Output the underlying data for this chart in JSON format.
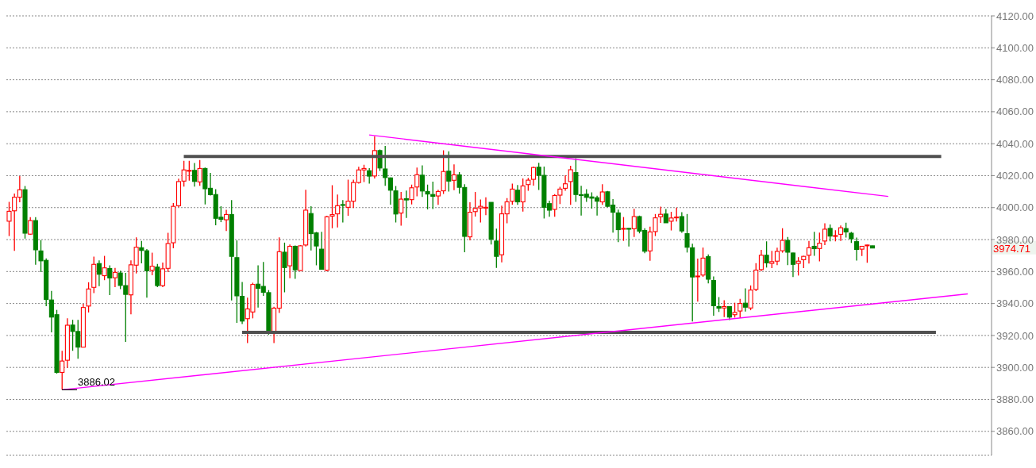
{
  "chart_data": {
    "type": "candlestick",
    "categories": [
      null,
      null,
      null,
      null,
      null,
      null,
      null,
      null,
      null,
      null,
      null,
      null,
      null,
      null,
      null,
      null,
      null,
      null,
      null,
      null,
      null,
      null,
      null,
      null,
      null,
      null,
      null,
      null,
      null,
      null,
      null,
      null,
      null,
      null,
      null,
      null,
      null,
      null,
      null,
      null,
      null,
      null,
      null,
      null,
      null,
      null,
      null,
      null,
      null,
      null,
      null,
      null,
      null,
      null,
      null,
      null,
      null,
      null,
      null,
      null,
      null,
      null,
      null,
      null,
      null,
      null,
      null,
      null,
      null,
      null,
      null,
      null,
      null,
      null,
      null,
      null,
      null,
      null,
      null,
      null,
      null,
      null,
      null,
      null,
      null,
      null,
      null,
      null,
      null,
      null,
      null,
      null,
      null,
      null,
      null,
      null,
      null,
      null,
      null,
      null,
      null,
      null,
      null,
      null,
      null,
      null,
      null,
      null,
      null,
      null,
      null,
      null,
      null,
      null,
      null,
      null,
      null,
      null,
      null,
      null,
      null,
      null,
      null,
      null,
      null,
      null,
      null,
      null,
      null,
      null,
      null,
      null,
      null,
      null,
      null,
      null,
      null,
      null,
      null,
      null,
      null,
      null,
      null,
      null,
      null,
      null,
      null,
      null,
      null,
      null,
      null,
      null,
      null,
      null,
      null,
      null,
      null,
      null,
      null,
      null,
      null,
      null,
      null,
      null,
      null,
      null,
      null,
      null,
      null,
      null,
      null,
      null,
      null,
      null,
      null,
      null,
      null,
      null,
      null,
      null,
      null,
      null,
      null,
      null,
      null,
      null
    ],
    "ohlc": [
      [
        3991.5,
        4003.6,
        3982.2,
        3997.7
      ],
      [
        3998.0,
        4008.8,
        3972.9,
        4006.5
      ],
      [
        4006.5,
        4019.7,
        4003.4,
        4011.2
      ],
      [
        4011.2,
        4013.5,
        3980.6,
        3984.0
      ],
      [
        3983.4,
        3994.1,
        3983.0,
        3991.9
      ],
      [
        3991.9,
        3994.1,
        3964.3,
        3973.6
      ],
      [
        3972.9,
        3979.7,
        3959.7,
        3966.7
      ],
      [
        3967.0,
        3968.2,
        3938.3,
        3942.5
      ],
      [
        3942.2,
        3947.9,
        3922.0,
        3931.5
      ],
      [
        3933.0,
        3936.0,
        3896.1,
        3896.9
      ],
      [
        3896.9,
        3910.4,
        3886.02,
        3904.0
      ],
      [
        3904.5,
        3930.7,
        3899.7,
        3926.4
      ],
      [
        3926.5,
        3929.8,
        3910.4,
        3922.5
      ],
      [
        3922.5,
        3929.8,
        3905.4,
        3912.7
      ],
      [
        3912.7,
        3939.8,
        3912.7,
        3937.5
      ],
      [
        3938.4,
        3953.3,
        3934.4,
        3949.1
      ],
      [
        3950.1,
        3969.3,
        3946.5,
        3964.5
      ],
      [
        3965.0,
        3967.0,
        3950.9,
        3958.3
      ],
      [
        3957.4,
        3969.8,
        3954.6,
        3962.3
      ],
      [
        3961.9,
        3963.9,
        3945.3,
        3956.0
      ],
      [
        3956.1,
        3962.3,
        3950.2,
        3959.5
      ],
      [
        3959.1,
        3960.5,
        3949.0,
        3951.3
      ],
      [
        3951.2,
        3959.2,
        3916.0,
        3945.7
      ],
      [
        3945.4,
        3967.0,
        3933.2,
        3964.2
      ],
      [
        3964.0,
        3981.4,
        3958.8,
        3975.2
      ],
      [
        3974.9,
        3979.1,
        3965.1,
        3973.2
      ],
      [
        3973.0,
        3974.0,
        3943.7,
        3960.5
      ],
      [
        3960.8,
        3971.8,
        3957.7,
        3963.3
      ],
      [
        3962.8,
        3964.7,
        3950.2,
        3951.2
      ],
      [
        3951.2,
        3965.6,
        3950.2,
        3961.7
      ],
      [
        3962.0,
        3984.2,
        3959.7,
        3977.5
      ],
      [
        3978.0,
        4002.9,
        3974.6,
        4000.8
      ],
      [
        4001.2,
        4018.1,
        4000.3,
        4016.3
      ],
      [
        4016.6,
        4029.3,
        4013.2,
        4023.6
      ],
      [
        4023.0,
        4029.3,
        4016.9,
        4023.3
      ],
      [
        4023.3,
        4027.9,
        4013.2,
        4016.4
      ],
      [
        4016.1,
        4029.8,
        4013.6,
        4024.5
      ],
      [
        4024.5,
        4025.1,
        4002.0,
        4011.8
      ],
      [
        4012.1,
        4021.7,
        4007.6,
        4008.1
      ],
      [
        4008.2,
        4011.6,
        3989.0,
        3993.3
      ],
      [
        3994.0,
        4000.9,
        3990.9,
        3992.7
      ],
      [
        3992.4,
        3998.6,
        3985.3,
        3995.7
      ],
      [
        3995.7,
        4004.7,
        3941.9,
        3969.5
      ],
      [
        3968.7,
        3979.5,
        3927.9,
        3944.8
      ],
      [
        3944.5,
        3953.5,
        3927.1,
        3929.0
      ],
      [
        3930.5,
        3943.7,
        3915.3,
        3936.6
      ],
      [
        3934.7,
        3953.0,
        3930.7,
        3951.9
      ],
      [
        3952.1,
        3963.9,
        3937.5,
        3949.5
      ],
      [
        3950.7,
        3966.0,
        3944.8,
        3947.0
      ],
      [
        3946.8,
        3948.4,
        3920.5,
        3921.7
      ],
      [
        3921.7,
        3937.9,
        3915.3,
        3937.1
      ],
      [
        3937.1,
        3981.4,
        3934.1,
        3972.4
      ],
      [
        3972.1,
        3978.1,
        3947.0,
        3962.5
      ],
      [
        3963.6,
        3976.9,
        3955.8,
        3975.8
      ],
      [
        3975.8,
        3976.3,
        3955.5,
        3961.1
      ],
      [
        3960.6,
        3976.5,
        3960.5,
        3976.1
      ],
      [
        3976.6,
        4011.2,
        3975.7,
        3998.4
      ],
      [
        3996.3,
        4000.9,
        3973.2,
        3983.7
      ],
      [
        3984.2,
        3984.8,
        3963.9,
        3976.0
      ],
      [
        3974.0,
        3984.8,
        3961.1,
        3961.4
      ],
      [
        3960.8,
        3994.9,
        3960.2,
        3994.3
      ],
      [
        3994.7,
        4014.0,
        3987.1,
        3995.6
      ],
      [
        3996.1,
        4008.2,
        3987.6,
        4001.2
      ],
      [
        4001.9,
        4004.7,
        3990.7,
        4001.6
      ],
      [
        4000.2,
        4017.5,
        3994.9,
        4004.0
      ],
      [
        4004.0,
        4017.5,
        3999.7,
        4015.7
      ],
      [
        4015.7,
        4025.6,
        4015.0,
        4023.6
      ],
      [
        4023.6,
        4026.8,
        4016.0,
        4024.5
      ],
      [
        4023.1,
        4024.7,
        4015.0,
        4019.7
      ],
      [
        4019.8,
        4044.7,
        4018.3,
        4035.7
      ],
      [
        4035.7,
        4036.3,
        4022.9,
        4024.8
      ],
      [
        4024.2,
        4038.6,
        4013.6,
        4018.8
      ],
      [
        4018.6,
        4018.8,
        4001.9,
        4010.9
      ],
      [
        4010.5,
        4013.5,
        3990.7,
        3996.0
      ],
      [
        3996.6,
        4009.8,
        3988.7,
        4005.3
      ],
      [
        4005.6,
        4010.7,
        3993.6,
        4004.8
      ],
      [
        4005.0,
        4014.4,
        4002.0,
        4012.4
      ],
      [
        4012.9,
        4025.1,
        4007.1,
        4020.6
      ],
      [
        4020.3,
        4026.4,
        4006.7,
        4010.4
      ],
      [
        4010.1,
        4014.4,
        3998.9,
        4008.5
      ],
      [
        4008.2,
        4016.3,
        3999.1,
        4007.1
      ],
      [
        4007.3,
        4011.2,
        4001.7,
        4010.1
      ],
      [
        4010.5,
        4035.8,
        4008.5,
        4022.6
      ],
      [
        4022.8,
        4035.2,
        4010.1,
        4016.6
      ],
      [
        4017.1,
        4027.0,
        4010.9,
        4020.5
      ],
      [
        4020.5,
        4022.2,
        4008.8,
        4012.7
      ],
      [
        4012.6,
        4014.7,
        3972.1,
        3982.0
      ],
      [
        3981.7,
        4003.3,
        3979.5,
        3997.1
      ],
      [
        3997.5,
        4009.8,
        3994.4,
        3999.5
      ],
      [
        3999.8,
        4005.1,
        3990.7,
        4000.8
      ],
      [
        3999.9,
        4006.5,
        3995.3,
        4000.2
      ],
      [
        4003.3,
        4003.4,
        3976.9,
        3980.2
      ],
      [
        3979.1,
        3986.8,
        3962.3,
        3969.5
      ],
      [
        3970.5,
        4001.2,
        3965.7,
        3996.1
      ],
      [
        3996.1,
        4005.9,
        3990.2,
        4003.6
      ],
      [
        4004.0,
        4015.0,
        4001.8,
        4011.6
      ],
      [
        4010.9,
        4014.1,
        4001.7,
        4003.6
      ],
      [
        4003.6,
        4018.3,
        3997.5,
        4013.6
      ],
      [
        4014.4,
        4018.6,
        4010.5,
        4017.2
      ],
      [
        4017.7,
        4025.7,
        4013.8,
        4025.1
      ],
      [
        4025.3,
        4028.1,
        4011.0,
        4020.2
      ],
      [
        4020.2,
        4025.7,
        3993.2,
        4000.2
      ],
      [
        4002.5,
        4004.3,
        3994.3,
        3998.4
      ],
      [
        3998.9,
        4008.4,
        3994.3,
        4007.6
      ],
      [
        4007.8,
        4013.0,
        4002.2,
        4011.6
      ],
      [
        4012.1,
        4020.2,
        4010.5,
        4014.9
      ],
      [
        4016.3,
        4026.2,
        4001.7,
        4023.7
      ],
      [
        4021.9,
        4030.9,
        4003.6,
        4008.2
      ],
      [
        4008.1,
        4013.6,
        3995.0,
        4007.8
      ],
      [
        4008.4,
        4011.6,
        4003.6,
        4006.4
      ],
      [
        4006.7,
        4009.5,
        3999.4,
        4005.9
      ],
      [
        4006.2,
        4007.4,
        3995.0,
        4004.0
      ],
      [
        4003.6,
        4014.6,
        4001.7,
        4009.8
      ],
      [
        4009.9,
        4010.4,
        4000.2,
        4000.8
      ],
      [
        4001.6,
        4005.3,
        3984.3,
        3997.1
      ],
      [
        3996.7,
        3998.8,
        3978.4,
        3986.2
      ],
      [
        3986.5,
        3994.1,
        3979.2,
        3987.0
      ],
      [
        3987.0,
        3987.2,
        3975.7,
        3986.5
      ],
      [
        3986.8,
        3999.2,
        3981.6,
        3994.4
      ],
      [
        3994.4,
        3995.0,
        3983.9,
        3985.3
      ],
      [
        3985.7,
        3987.1,
        3971.5,
        3972.7
      ],
      [
        3972.9,
        3988.1,
        3966.8,
        3984.8
      ],
      [
        3985.0,
        3996.0,
        3982.2,
        3993.6
      ],
      [
        3994.3,
        4000.6,
        3990.4,
        3995.8
      ],
      [
        3996.0,
        3999.1,
        3990.4,
        3990.5
      ],
      [
        3991.5,
        3997.4,
        3985.7,
        3993.5
      ],
      [
        3993.8,
        4000.0,
        3991.3,
        3994.1
      ],
      [
        3994.4,
        3997.2,
        3984.2,
        3985.4
      ],
      [
        3983.7,
        3996.0,
        3971.9,
        3975.2
      ],
      [
        3974.9,
        3977.4,
        3928.8,
        3956.6
      ],
      [
        3956.7,
        3968.1,
        3941.2,
        3957.2
      ],
      [
        3957.8,
        3975.0,
        3956.7,
        3968.4
      ],
      [
        3969.3,
        3970.7,
        3952.6,
        3955.2
      ],
      [
        3954.4,
        3956.9,
        3932.4,
        3938.6
      ],
      [
        3938.1,
        3944.0,
        3934.7,
        3937.1
      ],
      [
        3937.2,
        3942.0,
        3931.5,
        3938.1
      ],
      [
        3938.1,
        3938.3,
        3929.6,
        3931.5
      ],
      [
        3933.0,
        3940.5,
        3931.2,
        3934.4
      ],
      [
        3935.3,
        3942.9,
        3930.9,
        3940.0
      ],
      [
        3940.2,
        3949.5,
        3935.0,
        3937.7
      ],
      [
        3937.2,
        3951.3,
        3935.8,
        3948.4
      ],
      [
        3948.8,
        3965.3,
        3947.8,
        3960.9
      ],
      [
        3961.2,
        3973.6,
        3960.3,
        3970.2
      ],
      [
        3970.2,
        3978.9,
        3962.5,
        3965.4
      ],
      [
        3965.1,
        3973.0,
        3962.2,
        3966.2
      ],
      [
        3966.5,
        3974.9,
        3964.0,
        3972.6
      ],
      [
        3973.0,
        3987.1,
        3971.8,
        3979.5
      ],
      [
        3979.5,
        3981.6,
        3964.0,
        3972.1
      ],
      [
        3971.6,
        3971.8,
        3956.6,
        3964.5
      ],
      [
        3965.1,
        3969.0,
        3957.5,
        3966.5
      ],
      [
        3967.4,
        3969.9,
        3962.2,
        3969.5
      ],
      [
        3970.2,
        3979.2,
        3965.0,
        3974.9
      ],
      [
        3975.8,
        3984.8,
        3969.9,
        3974.3
      ],
      [
        3974.4,
        3984.3,
        3966.4,
        3977.7
      ],
      [
        3979.1,
        3990.2,
        3976.6,
        3986.5
      ],
      [
        3987.0,
        3989.5,
        3978.9,
        3982.2
      ],
      [
        3982.2,
        3985.9,
        3978.9,
        3982.5
      ],
      [
        3983.3,
        3988.8,
        3979.2,
        3987.4
      ],
      [
        3986.9,
        3990.6,
        3981.3,
        3984.8
      ],
      [
        3984.0,
        3984.8,
        3977.9,
        3980.5
      ],
      [
        3978.7,
        3981.3,
        3966.9,
        3973.8
      ],
      [
        3974.0,
        3976.1,
        3969.7,
        3975.8
      ],
      [
        3976.3,
        3976.8,
        3965.5,
        3976.6
      ],
      [
        3976.1,
        3976.2,
        3974.5,
        3974.71
      ],
      null,
      null,
      null,
      null,
      null,
      null,
      null,
      null,
      null,
      null,
      null,
      null,
      null,
      null,
      null,
      null,
      null,
      null,
      null,
      null,
      null,
      null
    ],
    "colors": [
      "#ff0000",
      "#ff0000",
      "#ff0000",
      "#008000",
      "#ff0000",
      "#008000",
      "#008000",
      "#008000",
      "#008000",
      "#008000",
      "#ff0000",
      "#ff0000",
      "#008000",
      "#008000",
      "#ff0000",
      "#ff0000",
      "#ff0000",
      "#008000",
      "#ff0000",
      "#008000",
      "#ff0000",
      "#008000",
      "#008000",
      "#ff0000",
      "#ff0000",
      "#008000",
      "#008000",
      "#ff0000",
      "#008000",
      "#ff0000",
      "#ff0000",
      "#ff0000",
      "#ff0000",
      "#ff0000",
      "#ff0000",
      "#008000",
      "#ff0000",
      "#008000",
      "#008000",
      "#008000",
      "#008000",
      "#ff0000",
      "#008000",
      "#008000",
      "#008000",
      "#ff0000",
      "#ff0000",
      "#008000",
      "#008000",
      "#008000",
      "#ff0000",
      "#ff0000",
      "#008000",
      "#ff0000",
      "#008000",
      "#ff0000",
      "#ff0000",
      "#008000",
      "#008000",
      "#008000",
      "#ff0000",
      "#ff0000",
      "#ff0000",
      "#008000",
      "#ff0000",
      "#ff0000",
      "#ff0000",
      "#ff0000",
      "#008000",
      "#ff0000",
      "#008000",
      "#008000",
      "#008000",
      "#008000",
      "#ff0000",
      "#008000",
      "#ff0000",
      "#ff0000",
      "#008000",
      "#008000",
      "#008000",
      "#ff0000",
      "#ff0000",
      "#008000",
      "#ff0000",
      "#008000",
      "#008000",
      "#ff0000",
      "#ff0000",
      "#ff0000",
      "#ff0000",
      "#008000",
      "#008000",
      "#ff0000",
      "#ff0000",
      "#ff0000",
      "#008000",
      "#ff0000",
      "#ff0000",
      "#ff0000",
      "#008000",
      "#008000",
      "#008000",
      "#ff0000",
      "#ff0000",
      "#ff0000",
      "#ff0000",
      "#008000",
      "#008000",
      "#008000",
      "#008000",
      "#008000",
      "#ff0000",
      "#008000",
      "#008000",
      "#008000",
      "#ff0000",
      "#008000",
      "#ff0000",
      "#008000",
      "#008000",
      "#ff0000",
      "#ff0000",
      "#ff0000",
      "#008000",
      "#ff0000",
      "#ff0000",
      "#008000",
      "#008000",
      "#008000",
      "#ff0000",
      "#ff0000",
      "#008000",
      "#008000",
      "#008000",
      "#ff0000",
      "#008000",
      "#ff0000",
      "#ff0000",
      "#008000",
      "#ff0000",
      "#ff0000",
      "#ff0000",
      "#008000",
      "#ff0000",
      "#ff0000",
      "#ff0000",
      "#008000",
      "#008000",
      "#ff0000",
      "#ff0000",
      "#ff0000",
      "#008000",
      "#ff0000",
      "#ff0000",
      "#008000",
      "#ff0000",
      "#ff0000",
      "#008000",
      "#008000",
      "#008000",
      "#ff0000",
      "#ff0000",
      "#008000",
      null,
      null,
      null,
      null,
      null,
      null,
      null,
      null,
      null,
      null,
      null,
      null,
      null,
      null,
      null,
      null,
      null,
      null,
      null,
      null,
      null,
      null
    ],
    "series": [
      {
        "type": "line",
        "color": "#505050",
        "values": [
          null,
          null,
          null,
          null,
          null,
          null,
          null,
          null,
          null,
          null,
          null,
          null,
          null,
          null,
          null,
          null,
          null,
          null,
          null,
          null,
          null,
          null,
          null,
          null,
          null,
          null,
          null,
          null,
          null,
          null,
          null,
          null,
          null,
          4032,
          null,
          null,
          null,
          null,
          null,
          null,
          null,
          null,
          null,
          null,
          null,
          null,
          null,
          null,
          null,
          null,
          null,
          null,
          null,
          null,
          null,
          null,
          null,
          null,
          null,
          null,
          null,
          null,
          null,
          null,
          null,
          null,
          null,
          null,
          null,
          null,
          null,
          null,
          null,
          null,
          null,
          null,
          null,
          null,
          null,
          null,
          null,
          null,
          null,
          null,
          null,
          null,
          null,
          null,
          null,
          null,
          null,
          null,
          null,
          null,
          null,
          null,
          null,
          null,
          null,
          null,
          null,
          null,
          null,
          null,
          null,
          null,
          null,
          null,
          null,
          null,
          null,
          null,
          null,
          null,
          null,
          null,
          null,
          null,
          null,
          null,
          null,
          null,
          null,
          null,
          null,
          null,
          null,
          null,
          null,
          null,
          null,
          null,
          null,
          null,
          null,
          null,
          null,
          null,
          null,
          null,
          null,
          null,
          null,
          null,
          null,
          null,
          null,
          null,
          null,
          null,
          null,
          null,
          null,
          null,
          null,
          null,
          null,
          null,
          null,
          null,
          null,
          null,
          null,
          null,
          null,
          null,
          null,
          null,
          null,
          null,
          null,
          null,
          null,
          null,
          null,
          null,
          4032,
          null,
          null,
          null,
          null,
          null,
          null,
          null,
          null,
          null
        ]
      },
      {
        "type": "line",
        "color": "#505050",
        "values": [
          null,
          null,
          null,
          null,
          null,
          null,
          null,
          null,
          null,
          null,
          null,
          null,
          null,
          null,
          null,
          null,
          null,
          null,
          null,
          null,
          null,
          null,
          null,
          null,
          null,
          null,
          null,
          null,
          null,
          null,
          null,
          null,
          null,
          null,
          null,
          null,
          null,
          null,
          null,
          null,
          null,
          null,
          null,
          null,
          3922,
          null,
          null,
          null,
          null,
          null,
          null,
          null,
          null,
          null,
          null,
          null,
          null,
          null,
          null,
          null,
          null,
          null,
          null,
          null,
          null,
          null,
          null,
          null,
          null,
          null,
          null,
          null,
          null,
          null,
          null,
          null,
          null,
          null,
          null,
          null,
          null,
          null,
          null,
          null,
          null,
          null,
          null,
          null,
          null,
          null,
          null,
          null,
          null,
          null,
          null,
          null,
          null,
          null,
          null,
          null,
          null,
          null,
          null,
          null,
          null,
          null,
          null,
          null,
          null,
          null,
          null,
          null,
          null,
          null,
          null,
          null,
          null,
          null,
          null,
          null,
          null,
          null,
          null,
          null,
          null,
          null,
          null,
          null,
          null,
          null,
          null,
          null,
          null,
          null,
          null,
          null,
          null,
          null,
          null,
          null,
          null,
          null,
          null,
          null,
          null,
          null,
          null,
          null,
          null,
          null,
          null,
          null,
          null,
          null,
          null,
          null,
          null,
          null,
          null,
          null,
          null,
          null,
          null,
          null,
          null,
          null,
          null,
          null,
          null,
          null,
          null,
          null,
          null,
          null,
          null,
          3922,
          null,
          null,
          null,
          null,
          null,
          null,
          null,
          null,
          null,
          null
        ]
      },
      {
        "type": "line",
        "color": "#ff00ff",
        "values": [
          null,
          null,
          null,
          null,
          null,
          null,
          null,
          null,
          null,
          null,
          null,
          null,
          null,
          null,
          null,
          null,
          null,
          null,
          null,
          null,
          null,
          null,
          null,
          null,
          null,
          null,
          null,
          null,
          null,
          null,
          null,
          null,
          null,
          null,
          null,
          null,
          null,
          null,
          null,
          null,
          null,
          null,
          null,
          null,
          null,
          null,
          null,
          null,
          null,
          null,
          null,
          null,
          null,
          null,
          null,
          null,
          null,
          null,
          null,
          null,
          null,
          null,
          null,
          null,
          null,
          null,
          null,
          null,
          4045.5,
          null,
          null,
          null,
          null,
          null,
          null,
          null,
          null,
          null,
          null,
          null,
          null,
          null,
          null,
          null,
          null,
          null,
          null,
          null,
          null,
          null,
          null,
          null,
          null,
          null,
          null,
          null,
          null,
          null,
          null,
          null,
          null,
          null,
          null,
          null,
          null,
          null,
          null,
          null,
          null,
          null,
          null,
          null,
          null,
          null,
          null,
          null,
          null,
          null,
          null,
          null,
          null,
          null,
          null,
          null,
          null,
          null,
          null,
          null,
          null,
          null,
          null,
          null,
          null,
          null,
          null,
          null,
          null,
          null,
          null,
          null,
          null,
          null,
          null,
          null,
          null,
          null,
          null,
          null,
          null,
          null,
          null,
          null,
          null,
          null,
          null,
          null,
          null,
          null,
          null,
          null,
          null,
          null,
          null,
          null,
          null,
          null,
          4007,
          null,
          null,
          null,
          null,
          null,
          null,
          null,
          null,
          null,
          null,
          null,
          null,
          null,
          null,
          null,
          null,
          null,
          null,
          null
        ]
      },
      {
        "type": "line",
        "color": "#ff00ff",
        "values": [
          null,
          null,
          null,
          null,
          null,
          null,
          null,
          null,
          null,
          null,
          3886,
          null,
          null,
          null,
          null,
          null,
          null,
          null,
          null,
          null,
          null,
          null,
          null,
          null,
          null,
          null,
          null,
          null,
          null,
          null,
          null,
          null,
          null,
          null,
          null,
          null,
          null,
          null,
          null,
          null,
          null,
          null,
          null,
          null,
          null,
          null,
          null,
          null,
          null,
          null,
          null,
          null,
          null,
          null,
          null,
          null,
          null,
          null,
          null,
          null,
          null,
          null,
          null,
          null,
          null,
          null,
          null,
          null,
          null,
          null,
          null,
          null,
          null,
          null,
          null,
          null,
          null,
          null,
          null,
          null,
          null,
          null,
          null,
          null,
          null,
          null,
          null,
          null,
          null,
          null,
          null,
          null,
          null,
          null,
          null,
          null,
          null,
          null,
          null,
          null,
          null,
          null,
          null,
          null,
          null,
          null,
          null,
          null,
          null,
          null,
          null,
          null,
          null,
          null,
          null,
          null,
          null,
          null,
          null,
          null,
          null,
          null,
          null,
          null,
          null,
          null,
          null,
          null,
          null,
          null,
          null,
          null,
          null,
          null,
          null,
          null,
          null,
          null,
          null,
          null,
          null,
          null,
          null,
          null,
          null,
          null,
          null,
          null,
          null,
          null,
          null,
          null,
          null,
          null,
          null,
          null,
          null,
          null,
          null,
          null,
          null,
          null,
          null,
          null,
          null,
          null,
          null,
          null,
          null,
          null,
          null,
          null,
          null,
          null,
          null,
          null,
          null,
          null,
          null,
          null,
          null,
          3946,
          null,
          null,
          null,
          null
        ]
      }
    ],
    "ylim": [
      3845,
      4120
    ],
    "yticks": [
      {
        "value": 3860,
        "label": "3860.00"
      },
      {
        "value": 3880,
        "label": "3880.00"
      },
      {
        "value": 3900,
        "label": "3900.00"
      },
      {
        "value": 3920,
        "label": "3920.00"
      },
      {
        "value": 3940,
        "label": "3940.00"
      },
      {
        "value": 3960,
        "label": "3960.00"
      },
      {
        "value": 3980,
        "label": "3980.00"
      },
      {
        "value": 4000,
        "label": "4000.00"
      },
      {
        "value": 4020,
        "label": "4020.00"
      },
      {
        "value": 4040,
        "label": "4040.00"
      },
      {
        "value": 4060,
        "label": "4060.00"
      },
      {
        "value": 4080,
        "label": "4080.00"
      },
      {
        "value": 4100,
        "label": "4100.00"
      },
      {
        "value": 4120,
        "label": "4120.00"
      }
    ],
    "grid": "y",
    "tick_labels": "y",
    "annotations": [
      {
        "text": "3886.02",
        "y": 3886.02
      },
      "3974.71"
    ]
  }
}
